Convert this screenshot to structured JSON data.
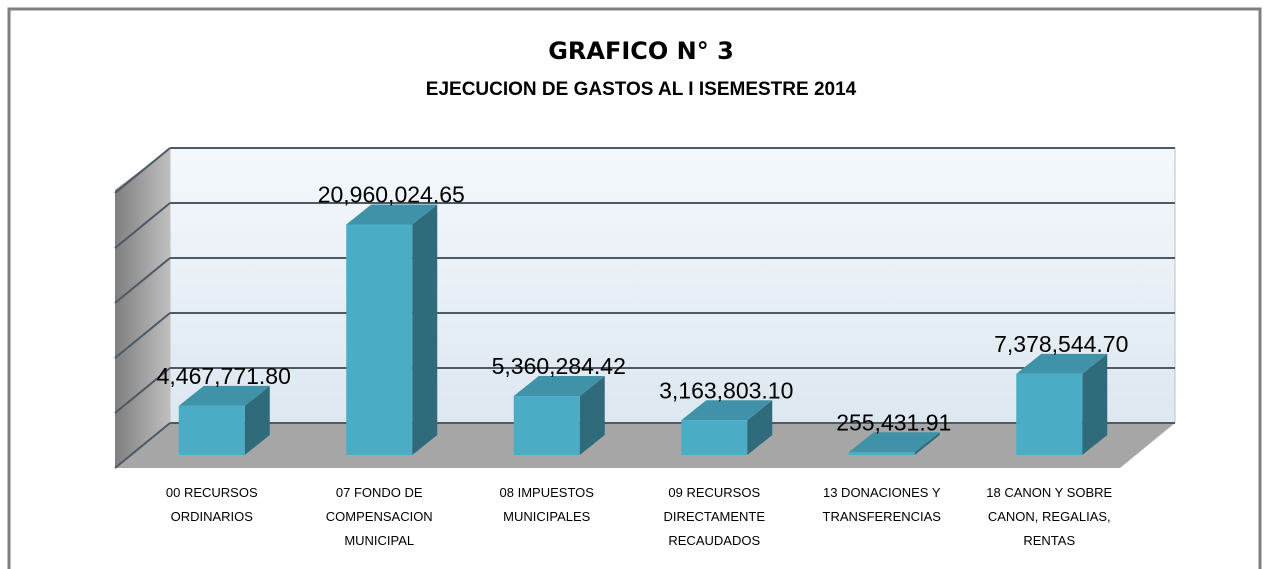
{
  "chart_data": {
    "type": "bar3d",
    "title": "GRAFICO N° 3",
    "subtitle": "EJECUCION DE GASTOS AL I ISEMESTRE  2014",
    "categories": [
      "00 RECURSOS ORDINARIOS",
      "07 FONDO DE COMPENSACION MUNICIPAL",
      "08 IMPUESTOS MUNICIPALES",
      "09 RECURSOS DIRECTAMENTE RECAUDADOS",
      "13 DONACIONES Y TRANSFERENCIAS",
      "18 CANON Y SOBRE CANON, REGALIAS, RENTAS"
    ],
    "values": [
      4467771.8,
      20960024.65,
      5360284.42,
      3163803.1,
      255431.91,
      7378544.7
    ],
    "value_labels": [
      "4,467,771.80",
      "20,960,024.65",
      "5,360,284.42",
      "3,163,803.10",
      "255,431.91",
      "7,378,544.70"
    ],
    "color": "#4bacc6",
    "ylim": [
      0,
      25000000
    ],
    "yticks": [
      0,
      5000000,
      10000000,
      15000000,
      20000000,
      25000000
    ],
    "grid": true
  }
}
